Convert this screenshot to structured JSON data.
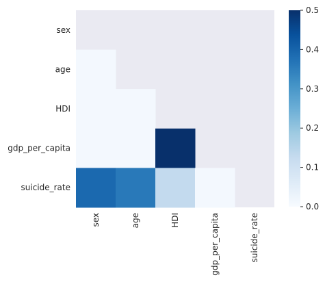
{
  "chart_data": {
    "type": "heatmap",
    "variables": [
      "sex",
      "age",
      "HDI",
      "gdp_per_capita",
      "suicide_rate"
    ],
    "mask": "upper-triangle-and-diagonal",
    "cells": [
      {
        "row": "age",
        "col": "sex",
        "value": 0.01
      },
      {
        "row": "HDI",
        "col": "sex",
        "value": 0.01
      },
      {
        "row": "HDI",
        "col": "age",
        "value": 0.01
      },
      {
        "row": "gdp_per_capita",
        "col": "sex",
        "value": 0.01
      },
      {
        "row": "gdp_per_capita",
        "col": "age",
        "value": 0.01
      },
      {
        "row": "gdp_per_capita",
        "col": "HDI",
        "value": 0.5
      },
      {
        "row": "suicide_rate",
        "col": "sex",
        "value": 0.39
      },
      {
        "row": "suicide_rate",
        "col": "age",
        "value": 0.36
      },
      {
        "row": "suicide_rate",
        "col": "HDI",
        "value": 0.13
      },
      {
        "row": "suicide_rate",
        "col": "gdp_per_capita",
        "value": 0.01
      }
    ],
    "colormap": "Blues",
    "vmin": 0.0,
    "vmax": 0.5,
    "colorbar_ticks": [
      "0.0",
      "0.1",
      "0.2",
      "0.3",
      "0.4",
      "0.5"
    ],
    "masked_color": "#eaeaf2",
    "grid": false
  }
}
